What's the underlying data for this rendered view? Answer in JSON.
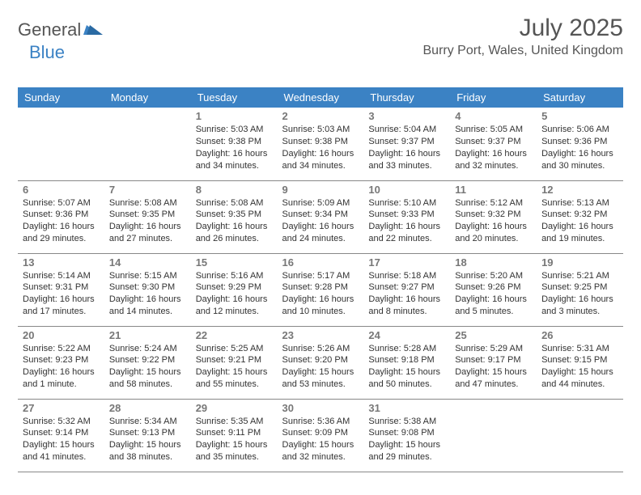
{
  "logo": {
    "general": "General",
    "blue": "Blue"
  },
  "header": {
    "title": "July 2025",
    "location": "Burry Port, Wales, United Kingdom"
  },
  "colors": {
    "accent": "#3b82c4",
    "text": "#333333",
    "muted": "#777777",
    "border": "#888888",
    "bg": "#ffffff"
  },
  "dayHeaders": [
    "Sunday",
    "Monday",
    "Tuesday",
    "Wednesday",
    "Thursday",
    "Friday",
    "Saturday"
  ],
  "weeks": [
    [
      null,
      null,
      {
        "n": "1",
        "sr": "Sunrise: 5:03 AM",
        "ss": "Sunset: 9:38 PM",
        "dl": "Daylight: 16 hours and 34 minutes."
      },
      {
        "n": "2",
        "sr": "Sunrise: 5:03 AM",
        "ss": "Sunset: 9:38 PM",
        "dl": "Daylight: 16 hours and 34 minutes."
      },
      {
        "n": "3",
        "sr": "Sunrise: 5:04 AM",
        "ss": "Sunset: 9:37 PM",
        "dl": "Daylight: 16 hours and 33 minutes."
      },
      {
        "n": "4",
        "sr": "Sunrise: 5:05 AM",
        "ss": "Sunset: 9:37 PM",
        "dl": "Daylight: 16 hours and 32 minutes."
      },
      {
        "n": "5",
        "sr": "Sunrise: 5:06 AM",
        "ss": "Sunset: 9:36 PM",
        "dl": "Daylight: 16 hours and 30 minutes."
      }
    ],
    [
      {
        "n": "6",
        "sr": "Sunrise: 5:07 AM",
        "ss": "Sunset: 9:36 PM",
        "dl": "Daylight: 16 hours and 29 minutes."
      },
      {
        "n": "7",
        "sr": "Sunrise: 5:08 AM",
        "ss": "Sunset: 9:35 PM",
        "dl": "Daylight: 16 hours and 27 minutes."
      },
      {
        "n": "8",
        "sr": "Sunrise: 5:08 AM",
        "ss": "Sunset: 9:35 PM",
        "dl": "Daylight: 16 hours and 26 minutes."
      },
      {
        "n": "9",
        "sr": "Sunrise: 5:09 AM",
        "ss": "Sunset: 9:34 PM",
        "dl": "Daylight: 16 hours and 24 minutes."
      },
      {
        "n": "10",
        "sr": "Sunrise: 5:10 AM",
        "ss": "Sunset: 9:33 PM",
        "dl": "Daylight: 16 hours and 22 minutes."
      },
      {
        "n": "11",
        "sr": "Sunrise: 5:12 AM",
        "ss": "Sunset: 9:32 PM",
        "dl": "Daylight: 16 hours and 20 minutes."
      },
      {
        "n": "12",
        "sr": "Sunrise: 5:13 AM",
        "ss": "Sunset: 9:32 PM",
        "dl": "Daylight: 16 hours and 19 minutes."
      }
    ],
    [
      {
        "n": "13",
        "sr": "Sunrise: 5:14 AM",
        "ss": "Sunset: 9:31 PM",
        "dl": "Daylight: 16 hours and 17 minutes."
      },
      {
        "n": "14",
        "sr": "Sunrise: 5:15 AM",
        "ss": "Sunset: 9:30 PM",
        "dl": "Daylight: 16 hours and 14 minutes."
      },
      {
        "n": "15",
        "sr": "Sunrise: 5:16 AM",
        "ss": "Sunset: 9:29 PM",
        "dl": "Daylight: 16 hours and 12 minutes."
      },
      {
        "n": "16",
        "sr": "Sunrise: 5:17 AM",
        "ss": "Sunset: 9:28 PM",
        "dl": "Daylight: 16 hours and 10 minutes."
      },
      {
        "n": "17",
        "sr": "Sunrise: 5:18 AM",
        "ss": "Sunset: 9:27 PM",
        "dl": "Daylight: 16 hours and 8 minutes."
      },
      {
        "n": "18",
        "sr": "Sunrise: 5:20 AM",
        "ss": "Sunset: 9:26 PM",
        "dl": "Daylight: 16 hours and 5 minutes."
      },
      {
        "n": "19",
        "sr": "Sunrise: 5:21 AM",
        "ss": "Sunset: 9:25 PM",
        "dl": "Daylight: 16 hours and 3 minutes."
      }
    ],
    [
      {
        "n": "20",
        "sr": "Sunrise: 5:22 AM",
        "ss": "Sunset: 9:23 PM",
        "dl": "Daylight: 16 hours and 1 minute."
      },
      {
        "n": "21",
        "sr": "Sunrise: 5:24 AM",
        "ss": "Sunset: 9:22 PM",
        "dl": "Daylight: 15 hours and 58 minutes."
      },
      {
        "n": "22",
        "sr": "Sunrise: 5:25 AM",
        "ss": "Sunset: 9:21 PM",
        "dl": "Daylight: 15 hours and 55 minutes."
      },
      {
        "n": "23",
        "sr": "Sunrise: 5:26 AM",
        "ss": "Sunset: 9:20 PM",
        "dl": "Daylight: 15 hours and 53 minutes."
      },
      {
        "n": "24",
        "sr": "Sunrise: 5:28 AM",
        "ss": "Sunset: 9:18 PM",
        "dl": "Daylight: 15 hours and 50 minutes."
      },
      {
        "n": "25",
        "sr": "Sunrise: 5:29 AM",
        "ss": "Sunset: 9:17 PM",
        "dl": "Daylight: 15 hours and 47 minutes."
      },
      {
        "n": "26",
        "sr": "Sunrise: 5:31 AM",
        "ss": "Sunset: 9:15 PM",
        "dl": "Daylight: 15 hours and 44 minutes."
      }
    ],
    [
      {
        "n": "27",
        "sr": "Sunrise: 5:32 AM",
        "ss": "Sunset: 9:14 PM",
        "dl": "Daylight: 15 hours and 41 minutes."
      },
      {
        "n": "28",
        "sr": "Sunrise: 5:34 AM",
        "ss": "Sunset: 9:13 PM",
        "dl": "Daylight: 15 hours and 38 minutes."
      },
      {
        "n": "29",
        "sr": "Sunrise: 5:35 AM",
        "ss": "Sunset: 9:11 PM",
        "dl": "Daylight: 15 hours and 35 minutes."
      },
      {
        "n": "30",
        "sr": "Sunrise: 5:36 AM",
        "ss": "Sunset: 9:09 PM",
        "dl": "Daylight: 15 hours and 32 minutes."
      },
      {
        "n": "31",
        "sr": "Sunrise: 5:38 AM",
        "ss": "Sunset: 9:08 PM",
        "dl": "Daylight: 15 hours and 29 minutes."
      },
      null,
      null
    ]
  ]
}
